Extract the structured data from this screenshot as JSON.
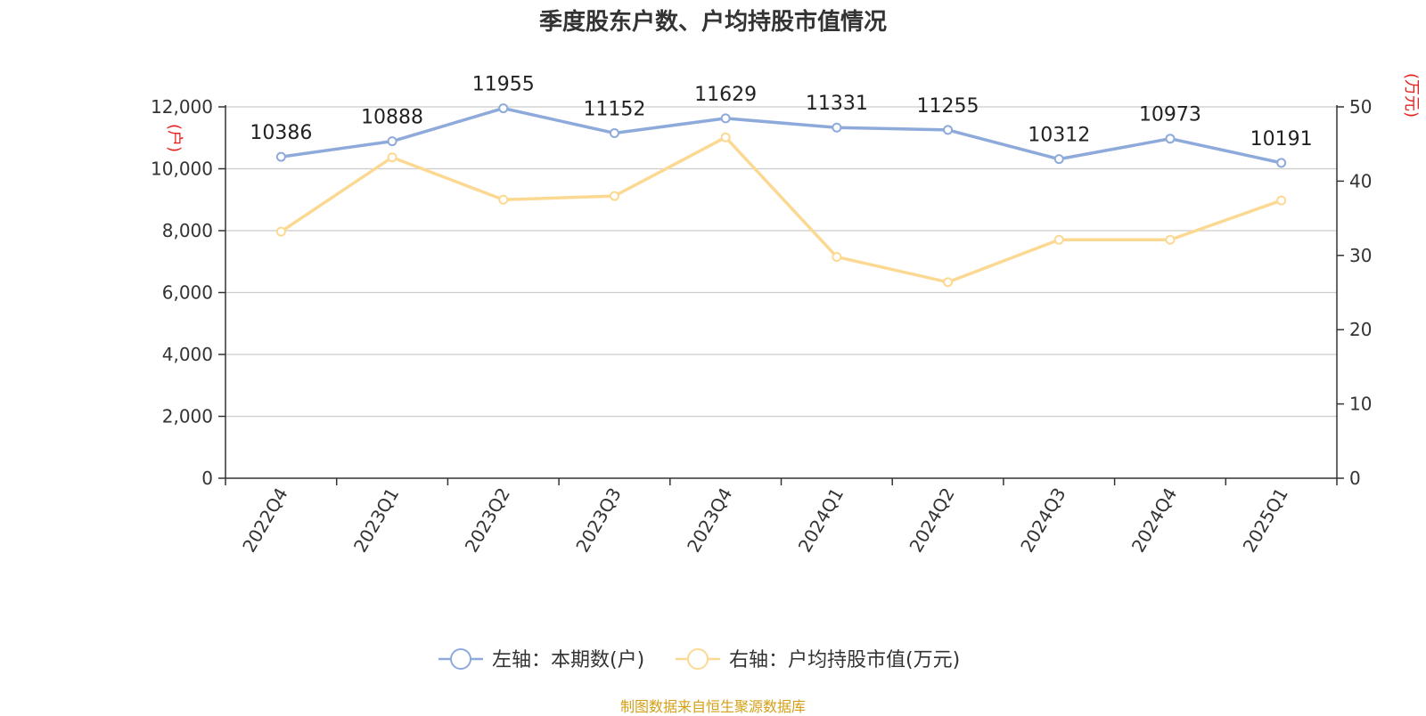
{
  "title": "季度股东户数、户均持股市值情况",
  "source": "制图数据来自恒生聚源数据库",
  "chart_data": {
    "type": "line",
    "categories": [
      "2022Q4",
      "2023Q1",
      "2023Q2",
      "2023Q3",
      "2023Q4",
      "2024Q1",
      "2024Q2",
      "2024Q3",
      "2024Q4",
      "2025Q1"
    ],
    "series": [
      {
        "name": "左轴：本期数(户)",
        "axis": "left",
        "color": "#8eaadb",
        "values": [
          10386,
          10888,
          11955,
          11152,
          11629,
          11331,
          11255,
          10312,
          10973,
          10191
        ],
        "show_labels": true
      },
      {
        "name": "右轴：户均持股市值(万元)",
        "axis": "right",
        "color": "#fcd993",
        "values": [
          33.2,
          43.2,
          37.5,
          38.0,
          45.9,
          29.8,
          26.4,
          32.1,
          32.1,
          37.4
        ],
        "show_labels": false
      }
    ],
    "left_axis": {
      "unit": "(户)",
      "ylim": [
        0,
        12000
      ],
      "ticks": [
        0,
        2000,
        4000,
        6000,
        8000,
        10000,
        12000
      ],
      "tick_labels": [
        "0",
        "2,000",
        "4,000",
        "6,000",
        "8,000",
        "10,000",
        "12,000"
      ]
    },
    "right_axis": {
      "unit": "(万元)",
      "ylim": [
        0,
        50
      ],
      "ticks": [
        0,
        10,
        20,
        30,
        40,
        50
      ],
      "tick_labels": [
        "0",
        "10",
        "20",
        "30",
        "40",
        "50"
      ]
    },
    "grid": true,
    "legend": "bottom-center",
    "axis_color": "#333333",
    "grid_color": "#cccccc",
    "unit_color": "#e8211f"
  }
}
